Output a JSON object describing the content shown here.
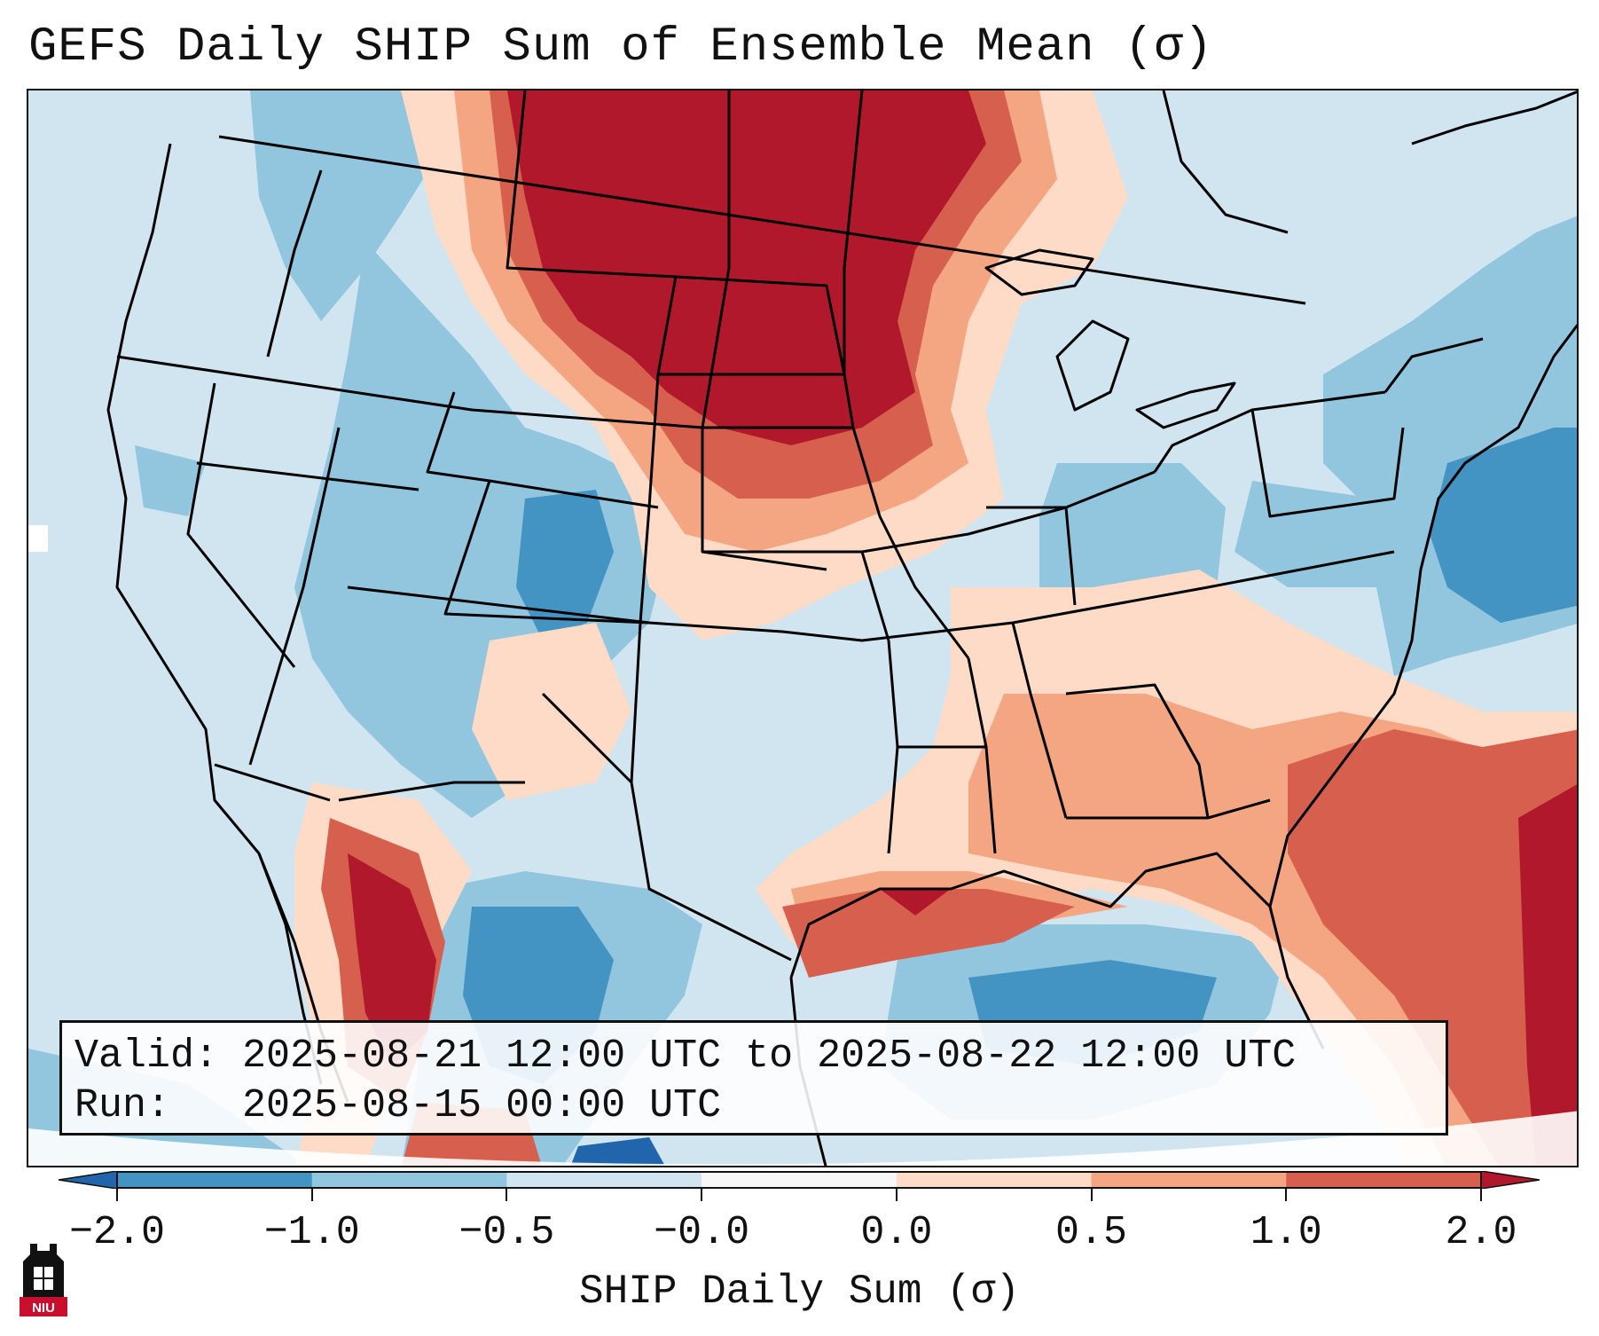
{
  "title": "GEFS Daily SHIP Sum of Ensemble Mean (σ)",
  "info": {
    "valid_label": "Valid:",
    "valid_value": "2025-08-21 12:00 UTC to 2025-08-22 12:00 UTC",
    "run_label": "Run:",
    "run_value": "2025-08-15 00:00 UTC"
  },
  "colorbar": {
    "label": "SHIP Daily Sum (σ)",
    "ticks": [
      "−2.0",
      "−1.0",
      "−0.5",
      "−0.0",
      "0.0",
      "0.5",
      "1.0",
      "2.0"
    ],
    "bins": [
      {
        "color": "#2166ac"
      },
      {
        "color": "#4393c3"
      },
      {
        "color": "#92c5de"
      },
      {
        "color": "#d1e5f0"
      },
      {
        "color": "#f7f7f7"
      },
      {
        "color": "#fddbc7"
      },
      {
        "color": "#f4a582"
      },
      {
        "color": "#d6604d"
      },
      {
        "color": "#b2182b"
      }
    ],
    "extend_low_color": "#2166ac",
    "extend_high_color": "#b2182b"
  },
  "map": {
    "projection": "Lambert Conformal, CONUS",
    "field": "SHIP daily sum anomaly (σ)",
    "colors": {
      "deep_red": "#b2182b",
      "red": "#d6604d",
      "salmon": "#f4a582",
      "light_salmon": "#fddbc7",
      "light_blue": "#d1e5f0",
      "blue": "#92c5de",
      "mid_blue": "#4393c3",
      "dark_blue": "#2166ac"
    }
  },
  "logo": {
    "name": "niu-logo",
    "text": "NIU"
  }
}
